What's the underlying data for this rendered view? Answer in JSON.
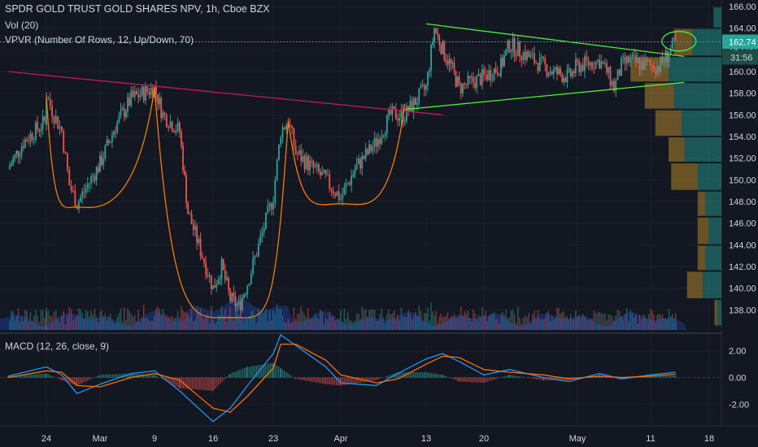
{
  "header": {
    "title": "SPDR GOLD TRUST GOLD SHARES NPV, 1h, Cboe BZX",
    "vol_label": "Vol (20)",
    "vpvr_label": "VPVR (Number Of Rows, 12, Up/Down, 70)",
    "macd_label": "MACD (12, 26, close, 9)"
  },
  "colors": {
    "background": "#131722",
    "up": "#26a69a",
    "down": "#ef5350",
    "macd_line": "#2196f3",
    "signal_line": "#ff6d00",
    "triangle": "#4cef39",
    "resistance": "#c2185b",
    "cup_curves": "#f57c00",
    "target_ellipse": "#4cef39",
    "last_price_badge": "#26a69a"
  },
  "chart_data": [
    {
      "type": "candlestick",
      "title": "SPDR GOLD TRUST GOLD SHARES NPV, 1h, Cboe BZX",
      "ylim": [
        136.0,
        166.6
      ],
      "y_ticks": [
        "166.00",
        "164.00",
        "162.00",
        "160.00",
        "158.00",
        "156.00",
        "154.00",
        "152.00",
        "150.00",
        "148.00",
        "146.00",
        "144.00",
        "142.00",
        "140.00",
        "138.00"
      ],
      "x_ticks": [
        "24",
        "Mar",
        "9",
        "16",
        "23",
        "Apr",
        "13",
        "20",
        "May",
        "11",
        "18"
      ],
      "last_price": "162.74",
      "countdown": "31:56",
      "grid": true,
      "price_path": [
        {
          "x": "Feb 19",
          "y": 151.0
        },
        {
          "x": "Feb 21",
          "y": 153.5
        },
        {
          "x": "Feb 24",
          "y": 155.5
        },
        {
          "x": "Feb 24",
          "y": 157.8
        },
        {
          "x": "Feb 25",
          "y": 156.0
        },
        {
          "x": "Feb 26",
          "y": 154.5
        },
        {
          "x": "Feb 27",
          "y": 149.5
        },
        {
          "x": "Feb 28",
          "y": 147.8
        },
        {
          "x": "Mar 2",
          "y": 151.5
        },
        {
          "x": "Mar 4",
          "y": 155.0
        },
        {
          "x": "Mar 6",
          "y": 157.5
        },
        {
          "x": "Mar 9",
          "y": 158.5
        },
        {
          "x": "Mar 10",
          "y": 156.0
        },
        {
          "x": "Mar 12",
          "y": 154.5
        },
        {
          "x": "Mar 13",
          "y": 147.0
        },
        {
          "x": "Mar 16",
          "y": 140.0
        },
        {
          "x": "Mar 17",
          "y": 142.0
        },
        {
          "x": "Mar 18",
          "y": 139.0
        },
        {
          "x": "Mar 19",
          "y": 138.3
        },
        {
          "x": "Mar 20",
          "y": 140.5
        },
        {
          "x": "Mar 23",
          "y": 148.5
        },
        {
          "x": "Mar 24",
          "y": 154.5
        },
        {
          "x": "Mar 25",
          "y": 155.5
        },
        {
          "x": "Mar 26",
          "y": 152.5
        },
        {
          "x": "Mar 30",
          "y": 150.0
        },
        {
          "x": "Apr 1",
          "y": 148.3
        },
        {
          "x": "Apr 3",
          "y": 151.0
        },
        {
          "x": "Apr 6",
          "y": 153.5
        },
        {
          "x": "Apr 8",
          "y": 156.0
        },
        {
          "x": "Apr 10",
          "y": 156.0
        },
        {
          "x": "Apr 13",
          "y": 158.5
        },
        {
          "x": "Apr 14",
          "y": 164.0
        },
        {
          "x": "Apr 15",
          "y": 162.0
        },
        {
          "x": "Apr 16",
          "y": 160.5
        },
        {
          "x": "Apr 17",
          "y": 158.5
        },
        {
          "x": "Apr 20",
          "y": 159.5
        },
        {
          "x": "Apr 22",
          "y": 160.5
        },
        {
          "x": "Apr 23",
          "y": 162.5
        },
        {
          "x": "Apr 24",
          "y": 162.0
        },
        {
          "x": "Apr 27",
          "y": 160.5
        },
        {
          "x": "Apr 28",
          "y": 160.0
        },
        {
          "x": "Apr 30",
          "y": 159.5
        },
        {
          "x": "May 1",
          "y": 160.5
        },
        {
          "x": "May 4",
          "y": 161.0
        },
        {
          "x": "May 5",
          "y": 160.0
        },
        {
          "x": "May 6",
          "y": 158.5
        },
        {
          "x": "May 7",
          "y": 160.5
        },
        {
          "x": "May 8",
          "y": 161.0
        },
        {
          "x": "May 11",
          "y": 160.5
        },
        {
          "x": "May 12",
          "y": 160.5
        },
        {
          "x": "May 13",
          "y": 161.5
        },
        {
          "x": "May 14",
          "y": 162.74
        }
      ],
      "drawings": {
        "resistance_line": [
          {
            "x": "Feb 19",
            "y": 160.0
          },
          {
            "x": "Apr 15",
            "y": 156.0
          }
        ],
        "triangle_upper": [
          {
            "x": "Apr 13",
            "y": 164.4
          },
          {
            "x": "May 15",
            "y": 161.4
          }
        ],
        "triangle_lower": [
          {
            "x": "Apr 10",
            "y": 156.5
          },
          {
            "x": "May 15",
            "y": 159.0
          }
        ],
        "cups": [
          {
            "from": {
              "x": "Feb 24",
              "y": 157.8
            },
            "bottom": {
              "x": "Feb 28",
              "y": 147.5
            },
            "to": {
              "x": "Mar 9",
              "y": 158.5
            }
          },
          {
            "from": {
              "x": "Mar 9",
              "y": 158.5
            },
            "bottom": {
              "x": "Mar 18",
              "y": 137.3
            },
            "to": {
              "x": "Mar 25",
              "y": 155.5
            }
          },
          {
            "from": {
              "x": "Mar 25",
              "y": 155.5
            },
            "bottom": {
              "x": "Apr 1",
              "y": 147.8
            },
            "to": {
              "x": "Apr 10",
              "y": 157.0
            }
          }
        ]
      }
    },
    {
      "type": "volume_profile",
      "title": "VPVR (Number Of Rows, 12, Up/Down, 70)",
      "rows": [
        {
          "price_low": 164.0,
          "price_high": 166.0,
          "up": 0.15,
          "down": 0.0
        },
        {
          "price_low": 161.4,
          "price_high": 164.0,
          "up": 0.55,
          "down": 0.35
        },
        {
          "price_low": 159.0,
          "price_high": 161.4,
          "up": 1.0,
          "down": 0.72
        },
        {
          "price_low": 156.5,
          "price_high": 159.0,
          "up": 0.9,
          "down": 0.55
        },
        {
          "price_low": 154.0,
          "price_high": 156.5,
          "up": 0.75,
          "down": 0.5
        },
        {
          "price_low": 151.6,
          "price_high": 154.0,
          "up": 0.7,
          "down": 0.3
        },
        {
          "price_low": 149.0,
          "price_high": 151.6,
          "up": 0.45,
          "down": 0.5
        },
        {
          "price_low": 146.6,
          "price_high": 149.0,
          "up": 0.3,
          "down": 0.15
        },
        {
          "price_low": 144.0,
          "price_high": 146.6,
          "up": 0.25,
          "down": 0.2
        },
        {
          "price_low": 141.6,
          "price_high": 144.0,
          "up": 0.3,
          "down": 0.15
        },
        {
          "price_low": 139.0,
          "price_high": 141.6,
          "up": 0.35,
          "down": 0.3
        },
        {
          "price_low": 136.5,
          "price_high": 139.0,
          "up": 0.08,
          "down": 0.05
        }
      ]
    },
    {
      "type": "line",
      "title": "MACD (12, 26, close, 9)",
      "ylim": [
        -3.5,
        3.2
      ],
      "y_ticks": [
        "2.00",
        "0.00",
        "-2.00"
      ],
      "series": [
        {
          "name": "MACD",
          "color": "#2196f3",
          "x": [
            "Feb 19",
            "Feb 24",
            "Feb 26",
            "Feb 28",
            "Mar 2",
            "Mar 6",
            "Mar 9",
            "Mar 12",
            "Mar 16",
            "Mar 18",
            "Mar 20",
            "Mar 23",
            "Mar 24",
            "Mar 26",
            "Mar 30",
            "Apr 1",
            "Apr 6",
            "Apr 9",
            "Apr 13",
            "Apr 15",
            "Apr 17",
            "Apr 20",
            "Apr 23",
            "Apr 27",
            "Apr 30",
            "May 4",
            "May 7",
            "May 11",
            "May 14"
          ],
          "y": [
            0.1,
            0.8,
            0.2,
            -1.2,
            -0.5,
            0.3,
            0.5,
            -1.0,
            -3.3,
            -2.3,
            -0.6,
            1.8,
            3.2,
            2.4,
            0.8,
            -0.4,
            -0.6,
            0.3,
            1.4,
            1.8,
            1.2,
            0.2,
            0.6,
            0.0,
            -0.3,
            0.3,
            -0.1,
            0.2,
            0.4
          ]
        },
        {
          "name": "Signal",
          "color": "#ff6d00",
          "x": [
            "Feb 19",
            "Feb 24",
            "Feb 26",
            "Feb 28",
            "Mar 2",
            "Mar 6",
            "Mar 9",
            "Mar 12",
            "Mar 16",
            "Mar 18",
            "Mar 20",
            "Mar 23",
            "Mar 24",
            "Mar 26",
            "Mar 30",
            "Apr 1",
            "Apr 6",
            "Apr 9",
            "Apr 13",
            "Apr 15",
            "Apr 17",
            "Apr 20",
            "Apr 23",
            "Apr 27",
            "Apr 30",
            "May 4",
            "May 7",
            "May 11",
            "May 14"
          ],
          "y": [
            0.0,
            0.5,
            0.4,
            -0.6,
            -0.7,
            0.0,
            0.3,
            -0.2,
            -2.3,
            -2.6,
            -1.4,
            0.7,
            2.5,
            2.5,
            1.3,
            0.2,
            -0.4,
            -0.1,
            1.0,
            1.6,
            1.5,
            0.6,
            0.4,
            0.2,
            -0.1,
            0.1,
            0.0,
            0.1,
            0.25
          ]
        }
      ]
    }
  ]
}
